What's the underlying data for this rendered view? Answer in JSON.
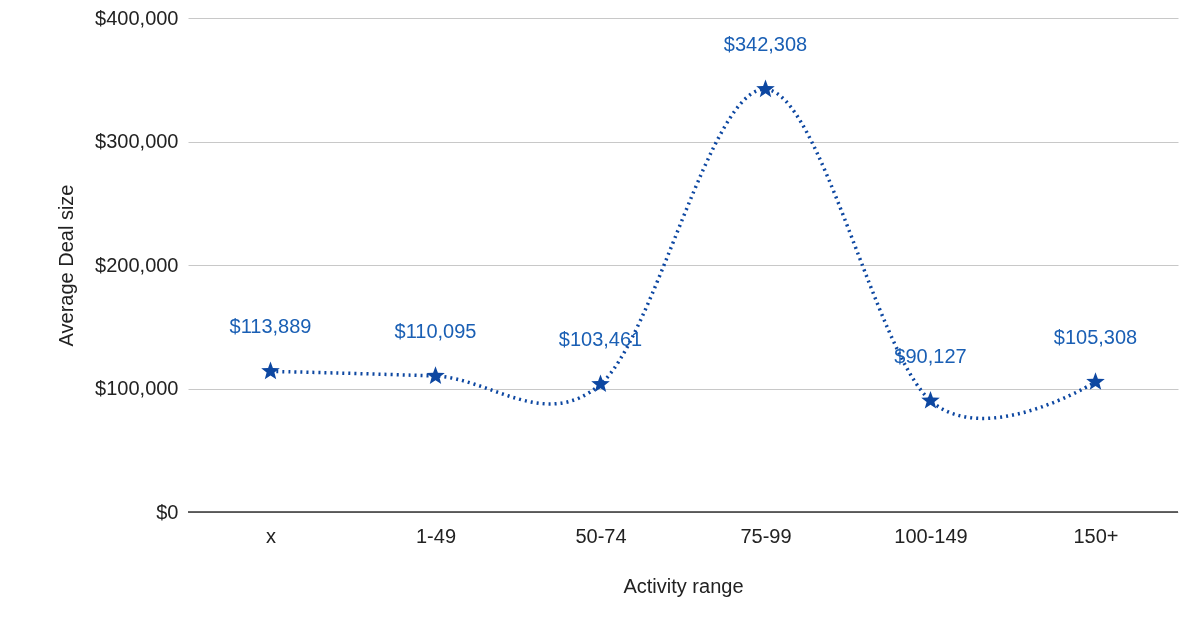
{
  "chart_data": {
    "type": "line",
    "xlabel": "Activity range",
    "ylabel": "Average Deal size",
    "categories": [
      "x",
      "1-49",
      "50-74",
      "75-99",
      "100-149",
      "150+"
    ],
    "series": [
      {
        "color": "#0d47a1",
        "values": [
          113889,
          110095,
          103461,
          342308,
          90127,
          105308
        ],
        "value_labels": [
          "$113,889",
          "$110,095",
          "$103,461",
          "$342,308",
          "$90,127",
          "$105,308"
        ]
      }
    ],
    "ylim": [
      0,
      400000
    ],
    "yticks": [
      {
        "value": 0,
        "label": "$0"
      },
      {
        "value": 100000,
        "label": "$100,000"
      },
      {
        "value": 200000,
        "label": "$200,000"
      },
      {
        "value": 300000,
        "label": "$300,000"
      },
      {
        "value": 400000,
        "label": "$400,000"
      }
    ],
    "grid": "y",
    "marker": "star",
    "line_style": "dotted"
  }
}
